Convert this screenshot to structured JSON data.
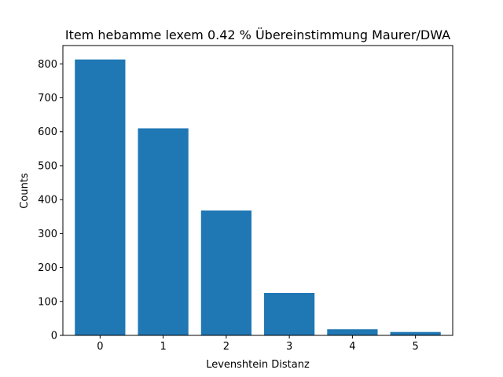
{
  "chart_data": {
    "type": "bar",
    "title": "Item hebamme lexem 0.42 % Übereinstimmung Maurer/DWA",
    "xlabel": "Levenshtein Distanz",
    "ylabel": "Counts",
    "categories": [
      "0",
      "1",
      "2",
      "3",
      "4",
      "5"
    ],
    "values": [
      813,
      610,
      368,
      125,
      18,
      10
    ],
    "ylim": [
      0,
      854
    ],
    "yticks": [
      0,
      100,
      200,
      300,
      400,
      500,
      600,
      700,
      800
    ],
    "bar_color": "#1f77b4",
    "grid": false
  }
}
